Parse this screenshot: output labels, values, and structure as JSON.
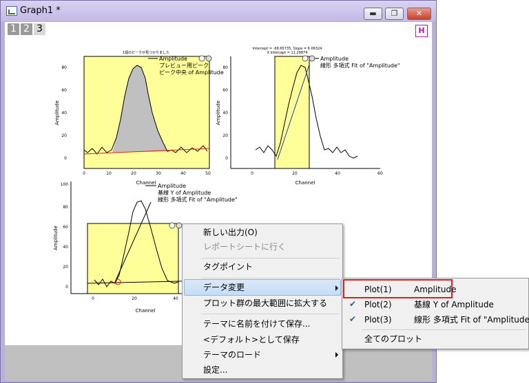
{
  "window": {
    "title": "Graph1 *",
    "buttons": {
      "minimize": "▬",
      "maximize": "❐",
      "close": "✕"
    }
  },
  "layers": [
    "1",
    "2",
    "3"
  ],
  "h_button": "H",
  "graph1": {
    "header": "1個のピークが見つかりました",
    "legend": [
      "Amplitude",
      "プレビュー用ピーク",
      "ピーク中央 of Amplitude"
    ],
    "xlabel": "Channel",
    "ylabel": "Amplitude",
    "xticks": [
      "0",
      "10",
      "20",
      "30",
      "40",
      "50"
    ],
    "yticks": [
      "0",
      "20",
      "40",
      "60",
      "80"
    ]
  },
  "graph2": {
    "header_line1": "Intercept = -68.65735, Slope = 6.06324",
    "header_line2": "X Intercept = 11.29874",
    "legend": [
      "Amplitude",
      "線形 多項式 Fit of \"Amplitude\""
    ],
    "xlabel": "Channel",
    "ylabel": "Amplitude",
    "xticks": [
      "0",
      "20",
      "40",
      "60"
    ],
    "yticks": [
      "0",
      "20",
      "40",
      "60",
      "80"
    ]
  },
  "graph3": {
    "legend": [
      "Amplitude",
      "基線 Y of Amplitude",
      "線形 多項式 Fit of \"Amplitude\""
    ],
    "xlabel": "Channel",
    "ylabel": "Amplitude",
    "xticks": [
      "0",
      "20",
      "40"
    ],
    "yticks": [
      "0",
      "20",
      "40",
      "60",
      "80",
      "100"
    ]
  },
  "context_menu": {
    "items": [
      "新しい出力(O)",
      "レポートシートに行く",
      "タグポイント",
      "データ変更",
      "プロット群の最大範囲に拡大する",
      "テーマに名前を付けて保存...",
      "<デフォルト>として保存",
      "テーマのロード",
      "設定..."
    ]
  },
  "submenu": {
    "items": [
      {
        "label": "Plot(1)",
        "name": "Amplitude",
        "checked": false
      },
      {
        "label": "Plot(2)",
        "name": "基線 Y of Amplitude",
        "checked": true
      },
      {
        "label": "Plot(3)",
        "name": "線形 多項式 Fit of \"Amplitude\"",
        "checked": true
      }
    ],
    "all": "全てのプロット",
    "check_glyph": "✔"
  },
  "colors": {
    "highlight_box": "#e31a1a",
    "region_fill": "#ffff99",
    "peak_fill": "#c0c0c0",
    "baseline": "#e31a1a",
    "window_frame": "#b8b0d9"
  }
}
